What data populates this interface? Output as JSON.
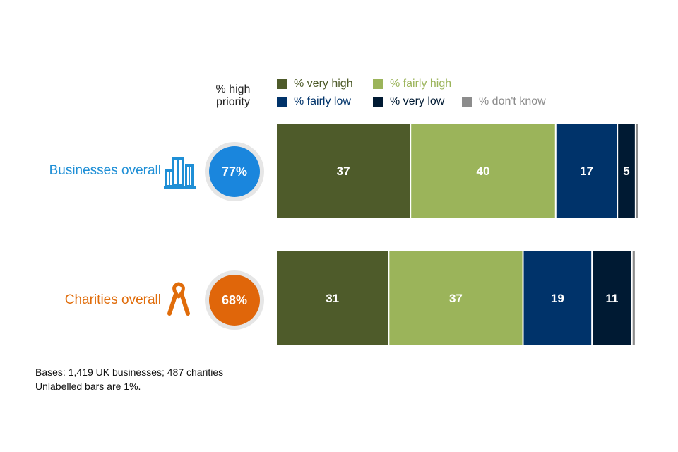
{
  "chart_data": {
    "type": "bar",
    "orientation": "horizontal",
    "stacked": true,
    "priority_header": [
      "% high",
      "priority"
    ],
    "categories": [
      "Businesses overall",
      "Charities overall"
    ],
    "high_priority": [
      "77%",
      "68%"
    ],
    "series": [
      {
        "name": "% very high",
        "color": "#4e5b2a",
        "values": [
          37,
          31
        ],
        "labels": [
          "37",
          "31"
        ]
      },
      {
        "name": "% fairly high",
        "color": "#9bb45a",
        "values": [
          40,
          37
        ],
        "labels": [
          "40",
          "37"
        ]
      },
      {
        "name": "% fairly low",
        "color": "#00336a",
        "values": [
          17,
          19
        ],
        "labels": [
          "17",
          "19"
        ]
      },
      {
        "name": "% very low",
        "color": "#001a33",
        "values": [
          5,
          11
        ],
        "labels": [
          "5",
          "11"
        ]
      },
      {
        "name": "% don't know",
        "color": "#8c8c8c",
        "values": [
          1,
          1
        ],
        "labels": [
          "",
          ""
        ]
      }
    ],
    "category_colors": [
      "#1f8fd6",
      "#e06c0a"
    ],
    "circle_colors": [
      "#1a86dd",
      "#e0660a"
    ],
    "icons": [
      "office-buildings-icon",
      "awareness-ribbon-icon"
    ],
    "legend_position": "top",
    "grid": false
  },
  "footnote": {
    "line1": "Bases: 1,419 UK businesses; 487 charities",
    "line2": "Unlabelled bars are 1%."
  }
}
